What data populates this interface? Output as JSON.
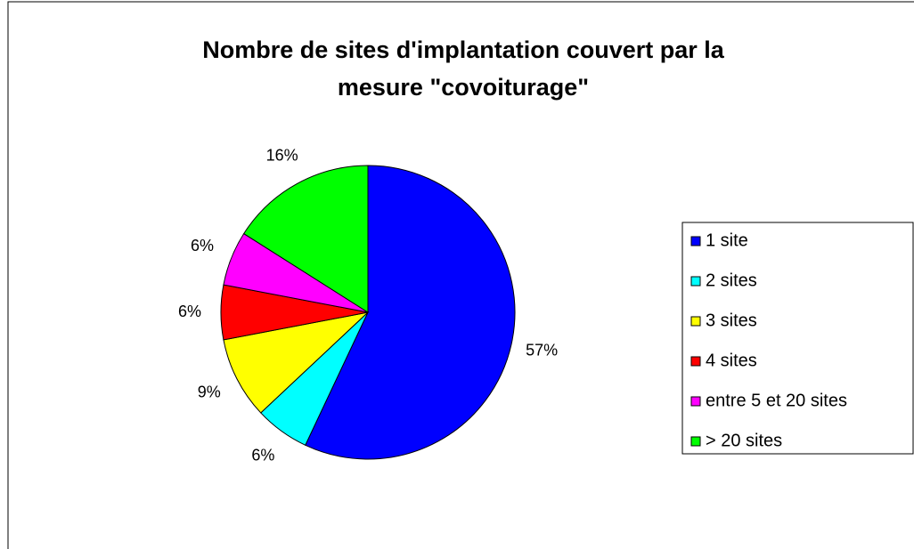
{
  "chart_data": {
    "type": "pie",
    "title": [
      "Nombre de sites d'implantation couvert par la",
      "mesure \"covoiturage\""
    ],
    "categories": [
      "1 site",
      "2 sites",
      "3 sites",
      "4 sites",
      "entre 5 et 20 sites",
      "> 20 sites"
    ],
    "values": [
      57,
      6,
      9,
      6,
      6,
      16
    ],
    "value_labels": [
      "57%",
      "6%",
      "9%",
      "6%",
      "6%",
      "16%"
    ],
    "colors": [
      "#0000ff",
      "#00ffff",
      "#ffff00",
      "#ff0000",
      "#ff00ff",
      "#00ff00"
    ],
    "legend": "right"
  }
}
